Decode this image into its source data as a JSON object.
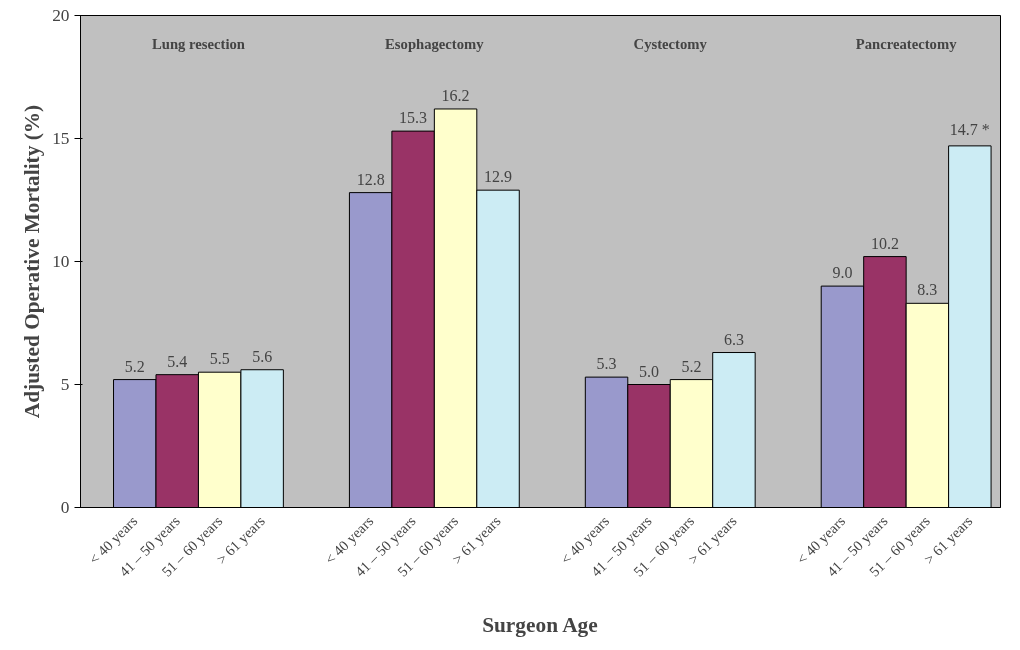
{
  "chart_data": {
    "type": "bar",
    "xlabel": "Surgeon Age",
    "ylabel": "Adjusted Operative Mortality (%)",
    "categories": [
      "Lung resection",
      "Esophagectomy",
      "Cystectomy",
      "Pancreatectomy"
    ],
    "series": [
      {
        "name": "< 40 years",
        "color": "#9999cc",
        "values": [
          5.2,
          12.8,
          5.3,
          9.0
        ],
        "value_labels": [
          "5.2",
          "12.8",
          "5.3",
          "9.0"
        ]
      },
      {
        "name": "41 – 50 years",
        "color": "#993366",
        "values": [
          5.4,
          15.3,
          5.0,
          10.2
        ],
        "value_labels": [
          "5.4",
          "15.3",
          "5.0",
          "10.2"
        ]
      },
      {
        "name": "51 – 60 years",
        "color": "#ffffcc",
        "values": [
          5.5,
          16.2,
          5.2,
          8.3
        ],
        "value_labels": [
          "5.5",
          "16.2",
          "5.2",
          "8.3"
        ]
      },
      {
        "name": "> 61 years",
        "color": "#ccecf4",
        "values": [
          5.6,
          12.9,
          6.3,
          14.7
        ],
        "value_labels": [
          "5.6",
          "12.9",
          "6.3",
          "14.7 *"
        ]
      }
    ],
    "ylim": [
      0,
      20
    ],
    "yticks": [
      0,
      5,
      10,
      15,
      20
    ],
    "grid": false
  }
}
